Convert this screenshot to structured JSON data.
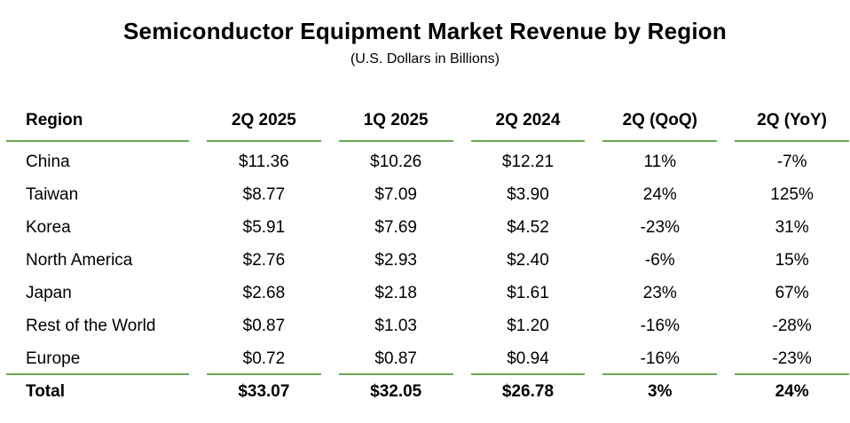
{
  "chart_data": {
    "type": "table",
    "title": "Semiconductor Equipment Market Revenue by Region",
    "subtitle": "(U.S. Dollars in Billions)",
    "columns": [
      "Region",
      "2Q 2025",
      "1Q 2025",
      "2Q 2024",
      "2Q (QoQ)",
      "2Q (YoY)"
    ],
    "rows": [
      [
        "China",
        "$11.36",
        "$10.26",
        "$12.21",
        "11%",
        "-7%"
      ],
      [
        "Taiwan",
        "$8.77",
        "$7.09",
        "$3.90",
        "24%",
        "125%"
      ],
      [
        "Korea",
        "$5.91",
        "$7.69",
        "$4.52",
        "-23%",
        "31%"
      ],
      [
        "North America",
        "$2.76",
        "$2.93",
        "$2.40",
        "-6%",
        "15%"
      ],
      [
        "Japan",
        "$2.68",
        "$2.18",
        "$1.61",
        "23%",
        "67%"
      ],
      [
        "Rest of the World",
        "$0.87",
        "$1.03",
        "$1.20",
        "-16%",
        "-28%"
      ],
      [
        "Europe",
        "$0.72",
        "$0.87",
        "$0.94",
        "-16%",
        "-23%"
      ]
    ],
    "total_row": [
      "Total",
      "$33.07",
      "$32.05",
      "$26.78",
      "3%",
      "24%"
    ],
    "layout": {
      "grid": "off",
      "header_separator": "per-column green line",
      "total_separator": "per-column green line"
    },
    "colors": {
      "separator_line": "#6aa84f",
      "text": "#000000",
      "background": "#ffffff"
    }
  }
}
